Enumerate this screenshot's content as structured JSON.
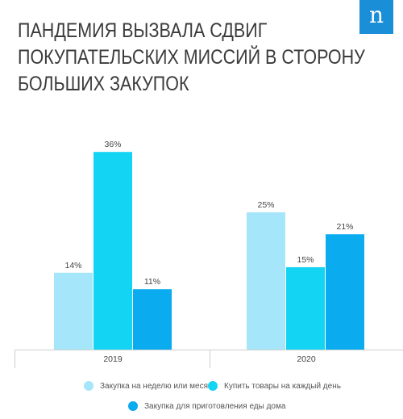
{
  "logo": {
    "letter": "n"
  },
  "chart_data": {
    "type": "bar",
    "title_lines": [
      "ПАНДЕМИЯ ВЫЗВАЛА СДВИГ",
      "ПОКУПАТЕЛЬСКИХ МИССИЙ В СТОРОНУ",
      "БОЛЬШИХ ЗАКУПОК"
    ],
    "categories": [
      "2019",
      "2020"
    ],
    "series": [
      {
        "name": "Закупка на неделю или месяц",
        "values": [
          14,
          25
        ],
        "labels": [
          "14%",
          "25%"
        ],
        "color": "#a6e6fa"
      },
      {
        "name": "Купить товары на каждый день",
        "values": [
          36,
          15
        ],
        "labels": [
          "36%",
          "15%"
        ],
        "color": "#14d4f4"
      },
      {
        "name": "Закупка для приготовления еды дома",
        "values": [
          11,
          21
        ],
        "labels": [
          "11%",
          "21%"
        ],
        "color": "#0aabef"
      }
    ],
    "ylim": [
      0,
      40
    ],
    "grid": false,
    "legend_position": "bottom"
  }
}
